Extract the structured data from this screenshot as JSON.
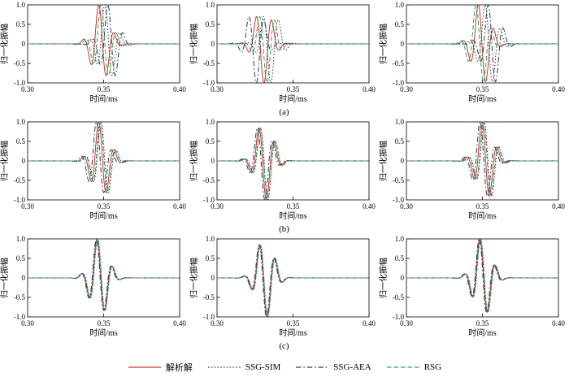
{
  "figure": {
    "captions": [
      "(a)",
      "(b)",
      "(c)"
    ]
  },
  "chart_data": {
    "type": "line",
    "grid": "3x3",
    "xlabel": "时间/ms",
    "ylabel": "归一化振幅",
    "xlim": [
      0.3,
      0.4
    ],
    "ylim": [
      -1.0,
      1.0
    ],
    "xticks": [
      0.3,
      0.35,
      0.4
    ],
    "xtick_labels": [
      "0.30",
      "0.35",
      "0.40"
    ],
    "yticks": [
      1.0,
      0.5,
      0.0,
      -0.5,
      -1.0
    ],
    "ytick_labels": [
      "1.0",
      "0.5",
      "0",
      "-0.5",
      "-1.0"
    ],
    "legend_position": "bottom-center",
    "series": [
      {
        "key": "analytic",
        "name": "解析解",
        "color": "#cc3333",
        "dash": "none"
      },
      {
        "key": "ssg-sim",
        "name": "SSG-SIM",
        "color": "#3a3a3a",
        "dash": "1.6,2.2"
      },
      {
        "key": "ssg-aea",
        "name": "SSG-AEA",
        "color": "#223a66",
        "dash": "6.5,2.8,1.6,2.8"
      },
      {
        "key": "rsg",
        "name": "RSG",
        "color": "#2aa35c",
        "dash": "5.5,3"
      }
    ],
    "subplots": [
      {
        "id": "a1",
        "row": "a",
        "col": 1,
        "wavelet": {
          "t0": 0.348,
          "f": 95,
          "sigma": 0.0055,
          "phase": 0.8
        },
        "shifts": [
          0,
          0.004,
          0.006,
          0.0015
        ]
      },
      {
        "id": "a2",
        "row": "a",
        "col": 2,
        "wavelet": {
          "t0": 0.3305,
          "f": 95,
          "sigma": 0.0055,
          "phase": 2.9
        },
        "shifts": [
          0,
          0.0045,
          -0.005,
          0.002
        ]
      },
      {
        "id": "a3",
        "row": "a",
        "col": 3,
        "wavelet": {
          "t0": 0.3495,
          "f": 95,
          "sigma": 0.0055,
          "phase": 1.45
        },
        "shifts": [
          0,
          0.0045,
          0.0065,
          -0.0015
        ]
      },
      {
        "id": "b1",
        "row": "b",
        "col": 1,
        "wavelet": {
          "t0": 0.348,
          "f": 95,
          "sigma": 0.0055,
          "phase": 0.8
        },
        "shifts": [
          0,
          0.0015,
          -0.0015,
          0.001
        ]
      },
      {
        "id": "b2",
        "row": "b",
        "col": 2,
        "wavelet": {
          "t0": 0.331,
          "f": 95,
          "sigma": 0.0055,
          "phase": 2.2
        },
        "shifts": [
          0,
          0.001,
          -0.001,
          0.0008
        ]
      },
      {
        "id": "b3",
        "row": "b",
        "col": 3,
        "wavelet": {
          "t0": 0.3515,
          "f": 95,
          "sigma": 0.0055,
          "phase": 1.2
        },
        "shifts": [
          0,
          0.0015,
          -0.0012,
          0.001
        ]
      },
      {
        "id": "c1",
        "row": "c",
        "col": 1,
        "wavelet": {
          "t0": 0.347,
          "f": 95,
          "sigma": 0.0055,
          "phase": 0.9
        },
        "shifts": [
          0,
          0.0005,
          -0.0004,
          0.0003
        ]
      },
      {
        "id": "c2",
        "row": "c",
        "col": 2,
        "wavelet": {
          "t0": 0.3315,
          "f": 95,
          "sigma": 0.0055,
          "phase": 2.2
        },
        "shifts": [
          0,
          0.0004,
          -0.0004,
          0.0003
        ]
      },
      {
        "id": "c3",
        "row": "c",
        "col": 3,
        "wavelet": {
          "t0": 0.35,
          "f": 95,
          "sigma": 0.0055,
          "phase": 1.1
        },
        "shifts": [
          0,
          0.0005,
          -0.0004,
          0.0004
        ]
      }
    ]
  }
}
